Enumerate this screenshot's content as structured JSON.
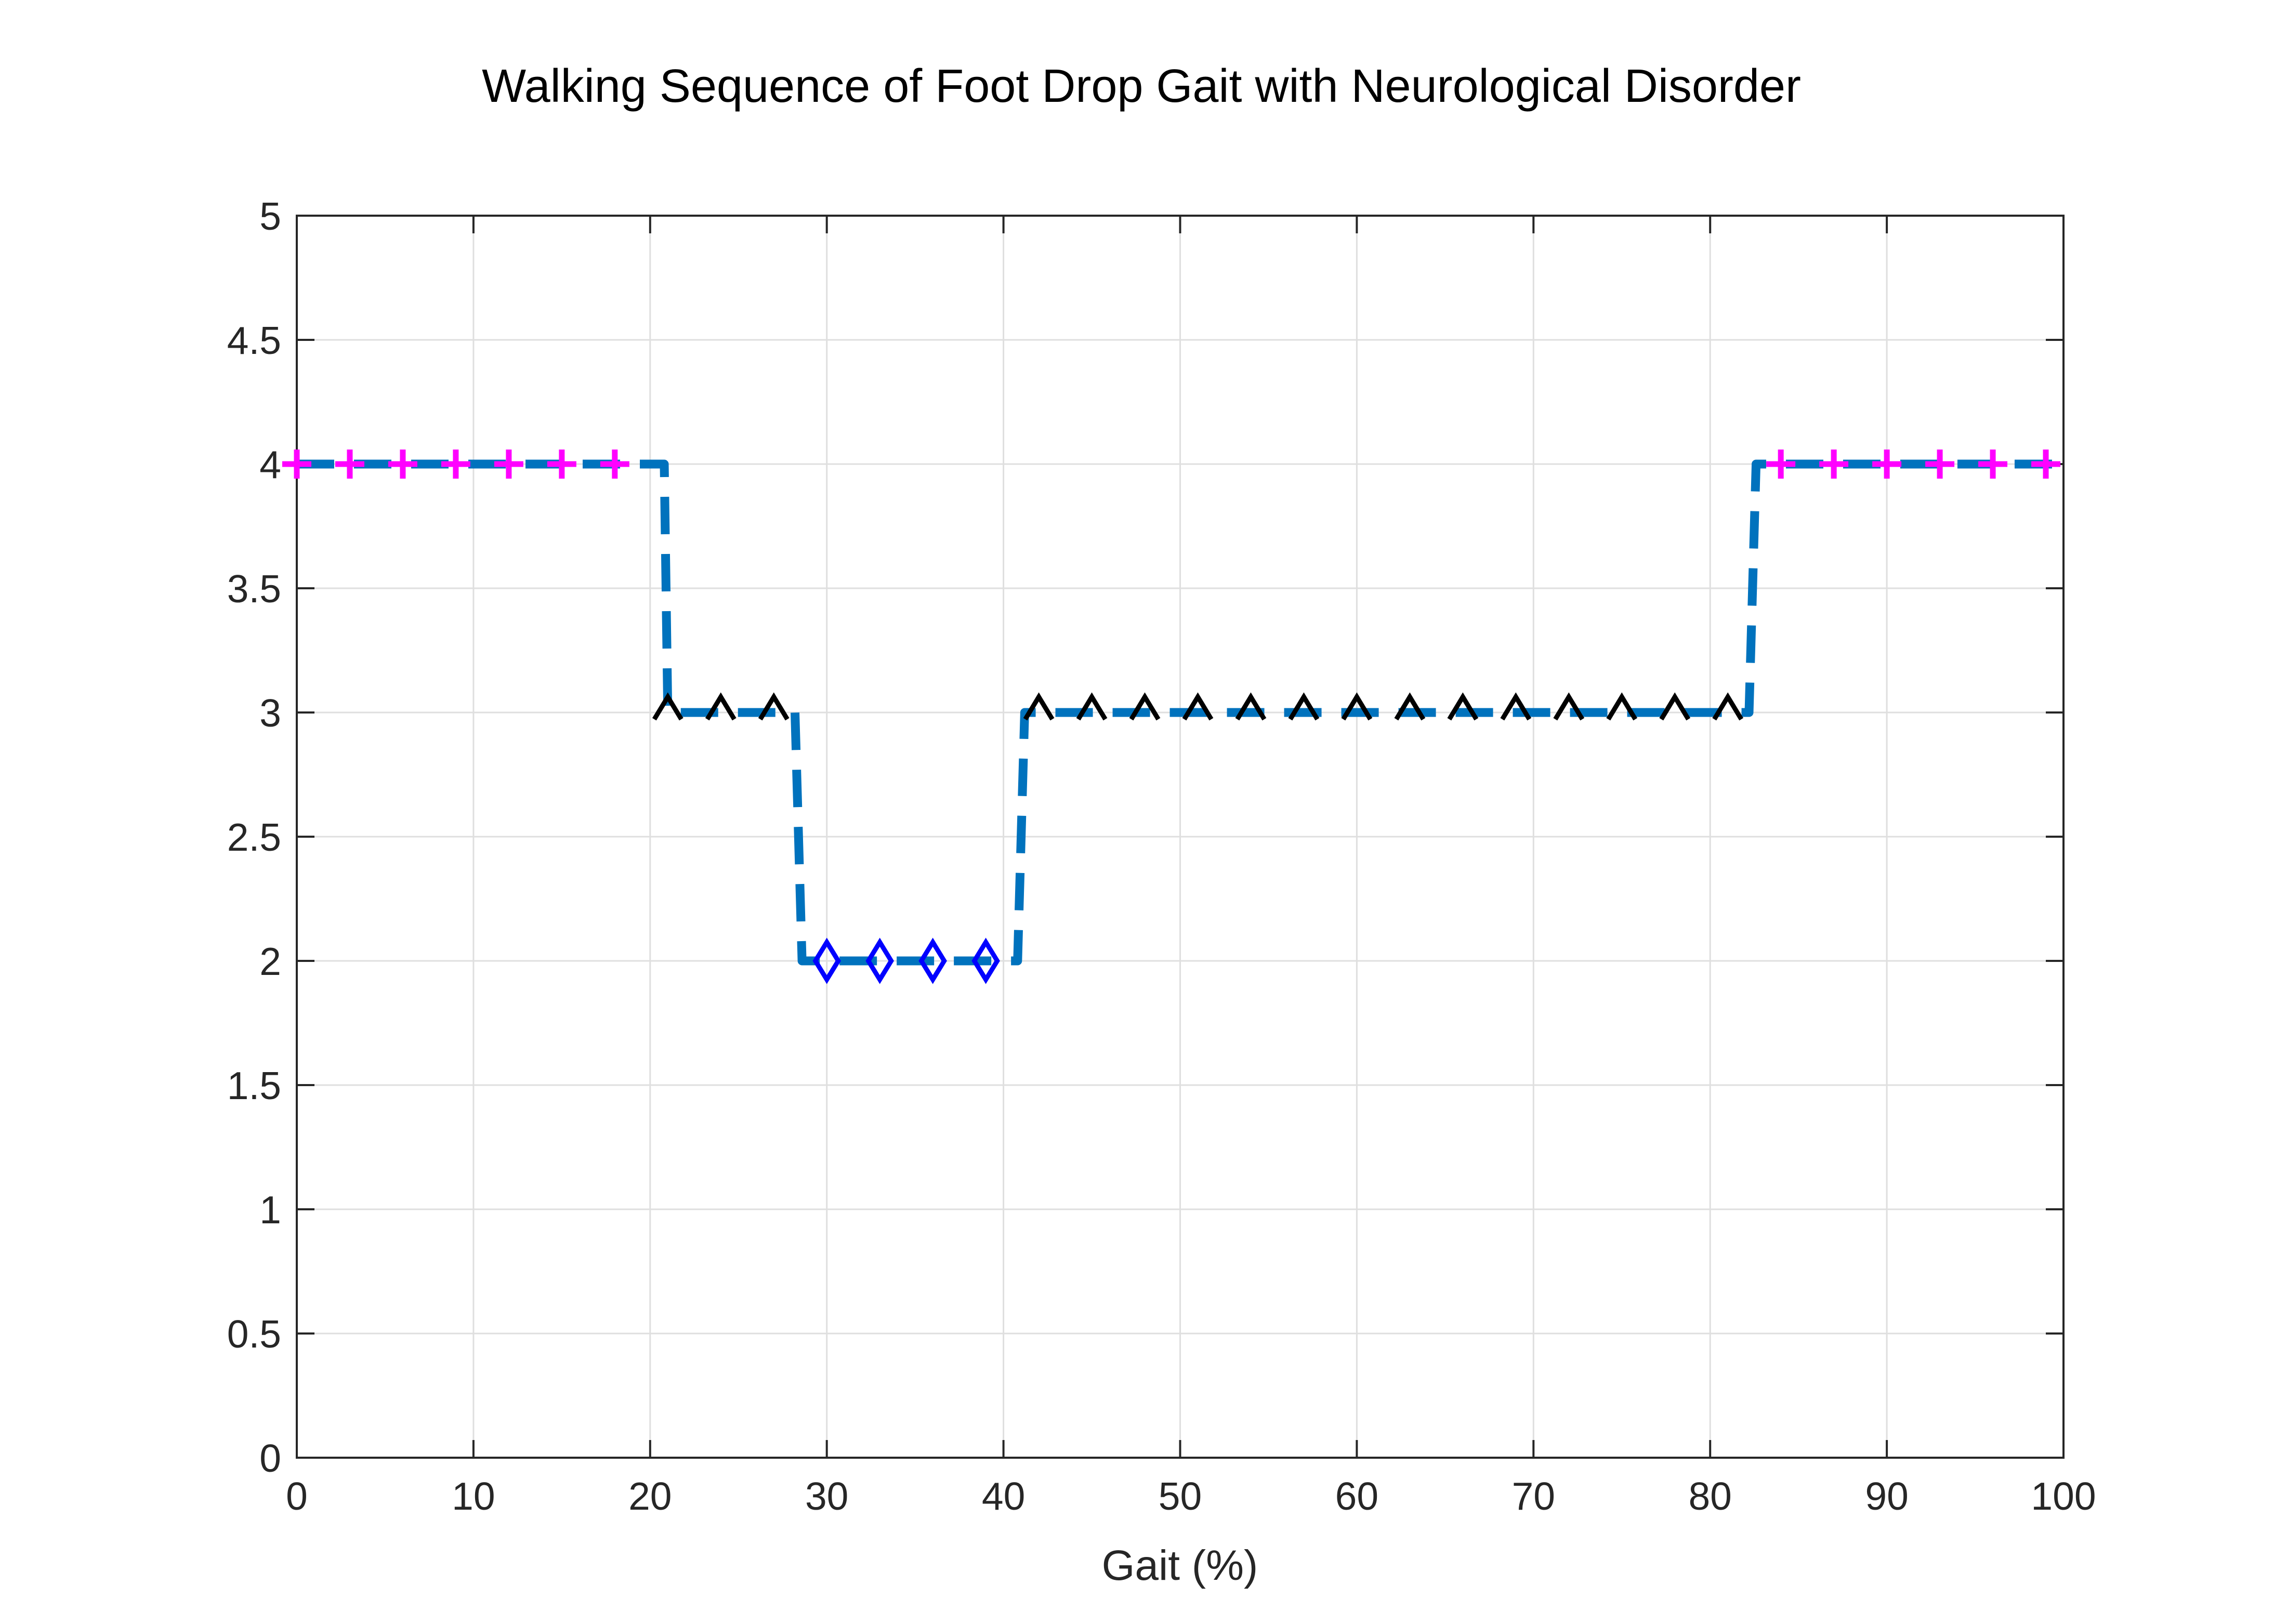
{
  "chart_data": {
    "type": "line",
    "title": "Walking Sequence of Foot Drop Gait with Neurological Disorder",
    "xlabel": "Gait (%)",
    "ylabel": "",
    "xlim": [
      0,
      100
    ],
    "ylim": [
      0,
      5
    ],
    "xticks": [
      0,
      10,
      20,
      30,
      40,
      50,
      60,
      70,
      80,
      90,
      100
    ],
    "yticks": [
      0,
      0.5,
      1,
      1.5,
      2,
      2.5,
      3,
      3.5,
      4,
      4.5,
      5
    ],
    "grid": true,
    "line": {
      "style": "dashed",
      "color": "#0072BD",
      "points": [
        [
          0,
          4
        ],
        [
          20.8,
          4
        ],
        [
          21,
          3
        ],
        [
          28.2,
          3
        ],
        [
          28.6,
          2
        ],
        [
          40.8,
          2
        ],
        [
          41.2,
          3
        ],
        [
          82.2,
          3
        ],
        [
          82.6,
          4
        ],
        [
          100,
          4
        ]
      ]
    },
    "series": [
      {
        "marker": "plus",
        "color": "#FF00FF",
        "x": [
          0,
          3,
          6,
          9,
          12,
          15,
          18
        ],
        "y": 4
      },
      {
        "marker": "triangle",
        "color": "#000000",
        "x": [
          21,
          24,
          27
        ],
        "y": 3
      },
      {
        "marker": "diamond",
        "color": "#0000FF",
        "x": [
          30,
          33,
          36,
          39
        ],
        "y": 2
      },
      {
        "marker": "triangle",
        "color": "#000000",
        "x": [
          42,
          45,
          48,
          51,
          54,
          57,
          60,
          63,
          66,
          69,
          72,
          75,
          78,
          81
        ],
        "y": 3
      },
      {
        "marker": "plus",
        "color": "#FF00FF",
        "x": [
          84,
          87,
          90,
          93,
          96,
          99
        ],
        "y": 4
      }
    ]
  }
}
